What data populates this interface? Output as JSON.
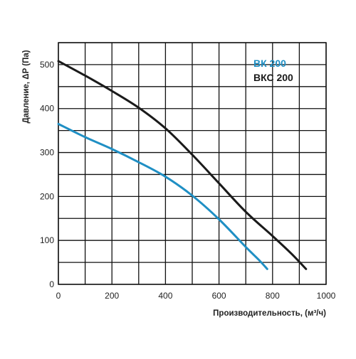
{
  "chart_data": {
    "type": "line",
    "xlabel": "Производительность, (м³/ч)",
    "ylabel": "Давление, ΔP (Па)",
    "xlim": [
      0,
      1000
    ],
    "ylim": [
      0,
      550
    ],
    "x_ticks": [
      0,
      200,
      400,
      600,
      800,
      1000
    ],
    "y_ticks": [
      0,
      100,
      200,
      300,
      400,
      500
    ],
    "grid": true,
    "legend_position": "top-right",
    "series": [
      {
        "name": "ВК 200",
        "color": "#1f8fc4",
        "points": [
          [
            0,
            365
          ],
          [
            100,
            335
          ],
          [
            200,
            308
          ],
          [
            300,
            278
          ],
          [
            400,
            245
          ],
          [
            500,
            202
          ],
          [
            600,
            148
          ],
          [
            700,
            85
          ],
          [
            750,
            55
          ],
          [
            780,
            35
          ]
        ]
      },
      {
        "name": "ВКС 200",
        "color": "#1a1a1a",
        "points": [
          [
            0,
            508
          ],
          [
            100,
            475
          ],
          [
            200,
            440
          ],
          [
            300,
            402
          ],
          [
            400,
            355
          ],
          [
            500,
            295
          ],
          [
            600,
            230
          ],
          [
            700,
            165
          ],
          [
            800,
            110
          ],
          [
            870,
            70
          ],
          [
            925,
            35
          ]
        ]
      }
    ]
  }
}
